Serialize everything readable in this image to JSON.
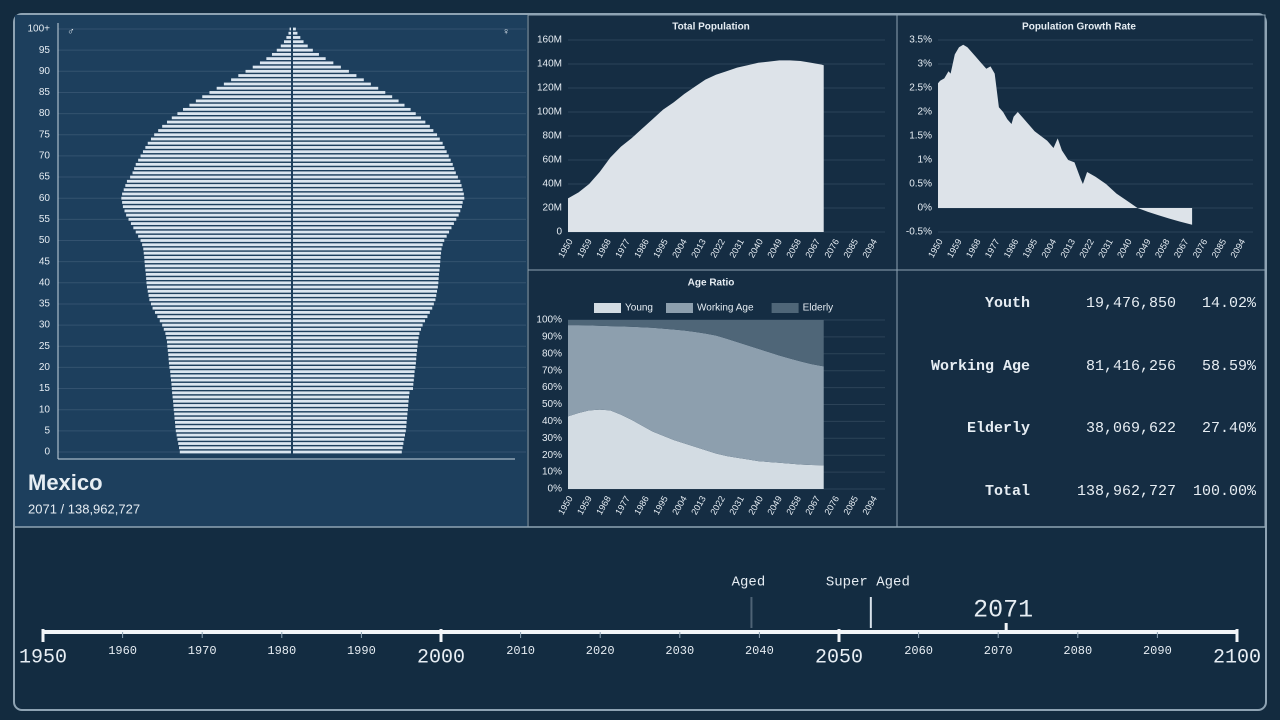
{
  "chart_data": [
    {
      "type": "population_pyramid",
      "series": [
        {
          "name": "♂",
          "color": "#dbe6f0",
          "values": [
            700000,
            705000,
            710000,
            715000,
            720000,
            725000,
            728000,
            730000,
            733000,
            735000,
            738000,
            740000,
            742000,
            745000,
            748000,
            750000,
            752000,
            755000,
            758000,
            760000,
            765000,
            768000,
            770000,
            772000,
            775000,
            778000,
            780000,
            785000,
            790000,
            800000,
            810000,
            825000,
            840000,
            855000,
            870000,
            880000,
            890000,
            895000,
            900000,
            905000,
            908000,
            910000,
            912000,
            915000,
            918000,
            920000,
            922000,
            925000,
            928000,
            935000,
            945000,
            960000,
            975000,
            990000,
            1005000,
            1020000,
            1035000,
            1045000,
            1055000,
            1060000,
            1065000,
            1060000,
            1050000,
            1040000,
            1030000,
            1010000,
            995000,
            985000,
            975000,
            960000,
            945000,
            930000,
            915000,
            900000,
            880000,
            860000,
            835000,
            810000,
            780000,
            750000,
            715000,
            680000,
            640000,
            600000,
            560000,
            515000,
            470000,
            425000,
            380000,
            335000,
            290000,
            245000,
            200000,
            160000,
            125000,
            95000,
            70000,
            50000,
            35000,
            22000,
            15000
          ]
        },
        {
          "name": "♀",
          "color": "#dbe6f0",
          "values": [
            685000,
            690000,
            695000,
            700000,
            705000,
            710000,
            713000,
            715000,
            718000,
            720000,
            723000,
            725000,
            727000,
            730000,
            733000,
            755000,
            757000,
            760000,
            763000,
            765000,
            770000,
            773000,
            775000,
            777000,
            780000,
            783000,
            785000,
            790000,
            795000,
            805000,
            815000,
            830000,
            845000,
            860000,
            875000,
            885000,
            895000,
            900000,
            905000,
            910000,
            913000,
            915000,
            917000,
            920000,
            923000,
            925000,
            927000,
            930000,
            933000,
            940000,
            950000,
            965000,
            980000,
            995000,
            1010000,
            1025000,
            1040000,
            1050000,
            1060000,
            1065000,
            1075000,
            1072000,
            1065000,
            1058000,
            1050000,
            1035000,
            1022000,
            1012000,
            1003000,
            990000,
            978000,
            965000,
            952000,
            940000,
            922000,
            905000,
            882000,
            860000,
            832000,
            805000,
            772000,
            740000,
            702000,
            665000,
            625000,
            582000,
            538000,
            492000,
            448000,
            402000,
            355000,
            305000,
            258000,
            210000,
            168000,
            130000,
            98000,
            72000,
            52000,
            34000,
            24000
          ]
        }
      ],
      "y": [
        0,
        1,
        2,
        3,
        4,
        5,
        6,
        7,
        8,
        9,
        10,
        11,
        12,
        13,
        14,
        15,
        16,
        17,
        18,
        19,
        20,
        21,
        22,
        23,
        24,
        25,
        26,
        27,
        28,
        29,
        30,
        31,
        32,
        33,
        34,
        35,
        36,
        37,
        38,
        39,
        40,
        41,
        42,
        43,
        44,
        45,
        46,
        47,
        48,
        49,
        50,
        51,
        52,
        53,
        54,
        55,
        56,
        57,
        58,
        59,
        60,
        61,
        62,
        63,
        64,
        65,
        66,
        67,
        68,
        69,
        70,
        71,
        72,
        73,
        74,
        75,
        76,
        77,
        78,
        79,
        80,
        81,
        82,
        83,
        84,
        85,
        86,
        87,
        88,
        89,
        90,
        91,
        92,
        93,
        94,
        95,
        96,
        97,
        98,
        99,
        100
      ],
      "xlim": [
        0,
        1460000
      ],
      "ylim": [
        0,
        100
      ],
      "yticks": [
        0,
        5,
        10,
        15,
        20,
        25,
        30,
        35,
        40,
        45,
        50,
        55,
        60,
        65,
        70,
        75,
        80,
        85,
        90,
        95,
        {
          "value": 100,
          "label": "100+"
        }
      ],
      "grid": true
    },
    {
      "type": "area",
      "title": "Total Population",
      "color": "#dde3e9",
      "x": [
        1950,
        1955,
        1960,
        1965,
        1970,
        1975,
        1980,
        1985,
        1990,
        1995,
        2000,
        2005,
        2010,
        2015,
        2020,
        2025,
        2030,
        2035,
        2040,
        2045,
        2050,
        2055,
        2060,
        2065,
        2070,
        2071
      ],
      "values": [
        28000000,
        33000000,
        40000000,
        50000000,
        62000000,
        71000000,
        78000000,
        86000000,
        94000000,
        102000000,
        108000000,
        115000000,
        121000000,
        127000000,
        131000000,
        134000000,
        137000000,
        139000000,
        141000000,
        142000000,
        143000000,
        143000000,
        142500000,
        141000000,
        139500000,
        138962727
      ],
      "xlim": [
        1950,
        2100
      ],
      "xticks": [
        1950,
        1959,
        1968,
        1977,
        1986,
        1995,
        2004,
        2013,
        2022,
        2031,
        2040,
        2049,
        2058,
        2067,
        2076,
        2085,
        2094
      ],
      "ylim": [
        0,
        160000000
      ],
      "yticks": [
        {
          "value": 0,
          "label": "0"
        },
        {
          "value": 20000000,
          "label": "20M"
        },
        {
          "value": 40000000,
          "label": "40M"
        },
        {
          "value": 60000000,
          "label": "60M"
        },
        {
          "value": 80000000,
          "label": "80M"
        },
        {
          "value": 100000000,
          "label": "100M"
        },
        {
          "value": 120000000,
          "label": "120M"
        },
        {
          "value": 140000000,
          "label": "140M"
        },
        {
          "value": 160000000,
          "label": "160M"
        }
      ],
      "grid": true
    },
    {
      "type": "area",
      "title": "Population Growth Rate",
      "color": "#dde3e9",
      "x": [
        1950,
        1951,
        1953,
        1955,
        1956,
        1958,
        1960,
        1962,
        1964,
        1966,
        1968,
        1970,
        1973,
        1975,
        1977,
        1979,
        1981,
        1983,
        1985,
        1986,
        1988,
        1990,
        1993,
        1996,
        1999,
        2002,
        2005,
        2007,
        2009,
        2012,
        2015,
        2018,
        2019,
        2021,
        2025,
        2030,
        2035,
        2040,
        2045,
        2050,
        2055,
        2060,
        2065,
        2071
      ],
      "values": [
        2.6,
        2.65,
        2.7,
        2.85,
        2.8,
        3.2,
        3.35,
        3.4,
        3.35,
        3.25,
        3.15,
        3.05,
        2.9,
        2.95,
        2.8,
        2.1,
        2.0,
        1.85,
        1.75,
        1.9,
        2.0,
        1.9,
        1.75,
        1.6,
        1.5,
        1.4,
        1.25,
        1.45,
        1.2,
        1.0,
        0.95,
        0.6,
        0.5,
        0.75,
        0.65,
        0.5,
        0.3,
        0.15,
        0.0,
        -0.08,
        -0.15,
        -0.22,
        -0.28,
        -0.35
      ],
      "xlim": [
        1950,
        2100
      ],
      "xticks": [
        1950,
        1959,
        1968,
        1977,
        1986,
        1995,
        2004,
        2013,
        2022,
        2031,
        2040,
        2049,
        2058,
        2067,
        2076,
        2085,
        2094
      ],
      "ylim": [
        -0.5,
        3.5
      ],
      "yticks": [
        {
          "value": -0.5,
          "label": "-0.5%"
        },
        {
          "value": 0,
          "label": "0%"
        },
        {
          "value": 0.5,
          "label": "0.5%"
        },
        {
          "value": 1,
          "label": "1%"
        },
        {
          "value": 1.5,
          "label": "1.5%"
        },
        {
          "value": 2,
          "label": "2%"
        },
        {
          "value": 2.5,
          "label": "2.5%"
        },
        {
          "value": 3,
          "label": "3%"
        },
        {
          "value": 3.5,
          "label": "3.5%"
        }
      ],
      "grid": true
    },
    {
      "type": "stacked_area",
      "title": "Age Ratio",
      "x": [
        1950,
        1955,
        1960,
        1965,
        1970,
        1975,
        1980,
        1985,
        1990,
        1995,
        2000,
        2005,
        2010,
        2015,
        2020,
        2025,
        2030,
        2035,
        2040,
        2045,
        2050,
        2055,
        2060,
        2065,
        2070,
        2071
      ],
      "series": [
        {
          "name": "Young",
          "color": "#d3dce3",
          "values": [
            43,
            45,
            46.5,
            47,
            46.5,
            44,
            41,
            37.5,
            34,
            31.5,
            29,
            27,
            25,
            23,
            21,
            19.5,
            18.5,
            17.5,
            16.5,
            16,
            15.5,
            15,
            14.5,
            14.2,
            14.05,
            14.02
          ]
        },
        {
          "name": "Working Age",
          "color": "#8d9fae",
          "values": [
            54,
            52,
            50.3,
            49.6,
            49.9,
            52.2,
            55,
            58.2,
            61.4,
            63.4,
            65.4,
            66.8,
            68,
            69,
            69.8,
            69.5,
            68.5,
            67.5,
            66.5,
            65,
            63.5,
            62.2,
            61,
            59.8,
            58.75,
            58.59
          ]
        },
        {
          "name": "Elderly",
          "color": "#4f6678",
          "values": [
            3,
            3,
            3.2,
            3.4,
            3.6,
            3.8,
            4,
            4.3,
            4.6,
            5.1,
            5.6,
            6.2,
            7,
            8,
            9.2,
            11,
            13,
            15,
            17,
            19,
            21,
            22.8,
            24.5,
            26,
            27.2,
            27.4
          ]
        }
      ],
      "xlim": [
        1950,
        2100
      ],
      "xticks": [
        1950,
        1959,
        1968,
        1977,
        1986,
        1995,
        2004,
        2013,
        2022,
        2031,
        2040,
        2049,
        2058,
        2067,
        2076,
        2085,
        2094
      ],
      "ylim": [
        0,
        100
      ],
      "yticks": [
        {
          "value": 0,
          "label": "0%"
        },
        {
          "value": 10,
          "label": "10%"
        },
        {
          "value": 20,
          "label": "20%"
        },
        {
          "value": 30,
          "label": "30%"
        },
        {
          "value": 40,
          "label": "40%"
        },
        {
          "value": 50,
          "label": "50%"
        },
        {
          "value": 60,
          "label": "60%"
        },
        {
          "value": 70,
          "label": "70%"
        },
        {
          "value": 80,
          "label": "80%"
        },
        {
          "value": 90,
          "label": "90%"
        },
        {
          "value": 100,
          "label": "100%"
        }
      ],
      "grid": true
    }
  ],
  "country": {
    "name": "Mexico",
    "subtitle": "2071  /  138,962,727"
  },
  "stats": {
    "rows": [
      [
        "Youth",
        "19,476,850",
        "14.02%"
      ],
      [
        "Working Age",
        "81,416,256",
        "58.59%"
      ],
      [
        "Elderly",
        "38,069,622",
        "27.40%"
      ],
      [
        "Total",
        "138,962,727",
        "100.00%"
      ]
    ]
  },
  "timeline": {
    "xlim": [
      1950,
      2100
    ],
    "major_ticks": [
      1950,
      2000,
      2050,
      2100
    ],
    "minor_ticks": [
      1960,
      1970,
      1980,
      1990,
      2010,
      2020,
      2030,
      2040,
      2060,
      2070,
      2080,
      2090
    ],
    "milestones": [
      {
        "label": "Aged",
        "value": 2039,
        "color": "#4e6375"
      },
      {
        "label": "Super Aged",
        "value": 2054,
        "color": "#d8e2ea"
      }
    ],
    "current": 2071
  }
}
